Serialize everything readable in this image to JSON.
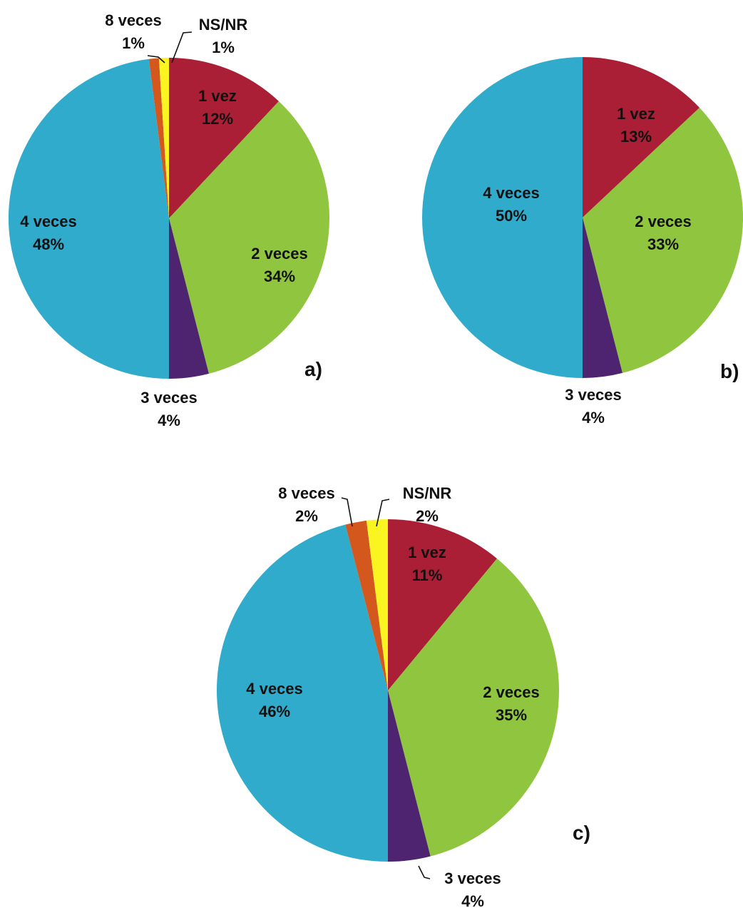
{
  "chart_data": [
    {
      "type": "pie",
      "panel_label": "a)",
      "start_angle_deg": 90,
      "direction": "clockwise",
      "slices": [
        {
          "label": "1 vez",
          "value": 12,
          "value_label": "12%",
          "color": "#AA1F35"
        },
        {
          "label": "2 veces",
          "value": 34,
          "value_label": "34%",
          "color": "#8FC53F"
        },
        {
          "label": "3 veces",
          "value": 4,
          "value_label": "4%",
          "color": "#4E2370"
        },
        {
          "label": "4 veces",
          "value": 48,
          "value_label": "48%",
          "color": "#30ABCC"
        },
        {
          "label": "8 veces",
          "value": 1,
          "value_label": "1%",
          "color": "#D4581E"
        },
        {
          "label": "NS/NR",
          "value": 1,
          "value_label": "1%",
          "color": "#FAF521"
        }
      ]
    },
    {
      "type": "pie",
      "panel_label": "b)",
      "start_angle_deg": 90,
      "direction": "clockwise",
      "slices": [
        {
          "label": "1 vez",
          "value": 13,
          "value_label": "13%",
          "color": "#AA1F35"
        },
        {
          "label": "2 veces",
          "value": 33,
          "value_label": "33%",
          "color": "#8FC53F"
        },
        {
          "label": "3 veces",
          "value": 4,
          "value_label": "4%",
          "color": "#4E2370"
        },
        {
          "label": "4 veces",
          "value": 50,
          "value_label": "50%",
          "color": "#30ABCC"
        }
      ]
    },
    {
      "type": "pie",
      "panel_label": "c)",
      "start_angle_deg": 90,
      "direction": "clockwise",
      "slices": [
        {
          "label": "1 vez",
          "value": 11,
          "value_label": "11%",
          "color": "#AA1F35"
        },
        {
          "label": "2 veces",
          "value": 35,
          "value_label": "35%",
          "color": "#8FC53F"
        },
        {
          "label": "3 veces",
          "value": 4,
          "value_label": "4%",
          "color": "#4E2370"
        },
        {
          "label": "4 veces",
          "value": 46,
          "value_label": "46%",
          "color": "#30ABCC"
        },
        {
          "label": "8 veces",
          "value": 2,
          "value_label": "2%",
          "color": "#D4581E"
        },
        {
          "label": "NS/NR",
          "value": 2,
          "value_label": "2%",
          "color": "#FAF521"
        }
      ]
    }
  ]
}
